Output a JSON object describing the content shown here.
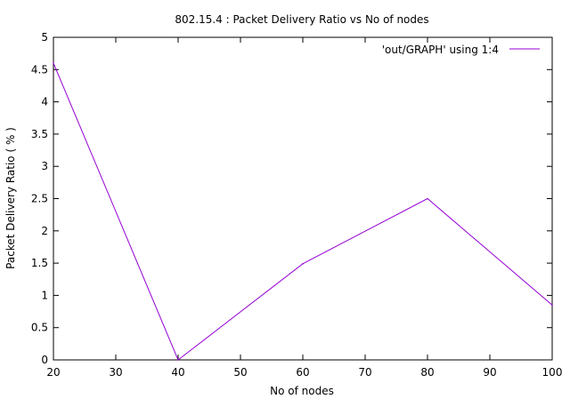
{
  "chart_data": {
    "type": "line",
    "title": "802.15.4 : Packet Delivery Ratio vs No of nodes",
    "xlabel": "No of nodes",
    "ylabel": "Packet Delivery Ratio ( % )",
    "xlim": [
      20,
      100
    ],
    "ylim": [
      0,
      5
    ],
    "xticks": [
      20,
      30,
      40,
      50,
      60,
      70,
      80,
      90,
      100
    ],
    "yticks": [
      0,
      0.5,
      1,
      1.5,
      2,
      2.5,
      3,
      3.5,
      4,
      4.5,
      5
    ],
    "xtick_labels": [
      "20",
      "30",
      "40",
      "50",
      "60",
      "70",
      "80",
      "90",
      "100"
    ],
    "ytick_labels": [
      "0",
      "0.5",
      "1",
      "1.5",
      "2",
      "2.5",
      "3",
      "3.5",
      "4",
      "4.5",
      "5"
    ],
    "legend_position": "top-right",
    "series": [
      {
        "name": "'out/GRAPH' using 1:4",
        "color": "#9400d3",
        "x": [
          20,
          40,
          60,
          80,
          100
        ],
        "y": [
          4.6,
          0,
          1.49,
          2.5,
          0.85
        ]
      }
    ]
  }
}
